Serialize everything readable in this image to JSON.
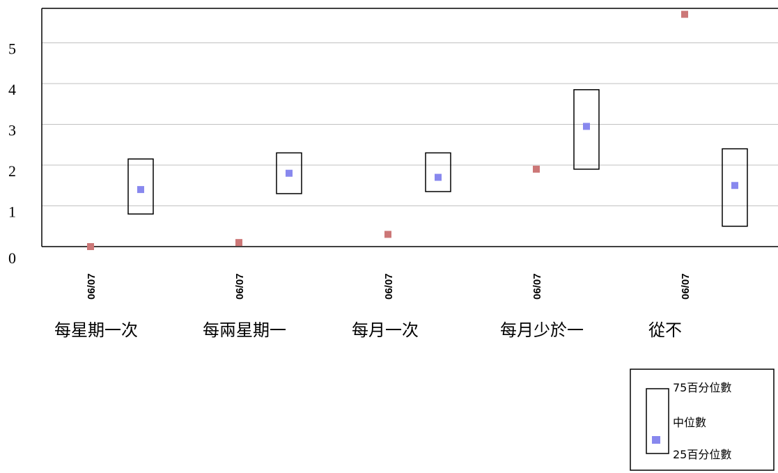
{
  "chart_data": {
    "type": "scatter",
    "ylim": [
      0,
      6
    ],
    "yticks": [
      0,
      1,
      2,
      3,
      4,
      5
    ],
    "grid": true,
    "legend_position": "bottom-right",
    "categories": [
      "每星期一次",
      "每兩星期一",
      "每月一次",
      "每月少於一",
      "從不"
    ],
    "tick_labels": [
      "06/07",
      "06/07",
      "06/07",
      "06/07",
      "06/07"
    ],
    "series": [
      {
        "color": "#cc7777",
        "values": [
          0.0,
          0.1,
          0.3,
          1.9,
          5.7
        ]
      },
      {
        "color": "#8888ee",
        "median": [
          1.4,
          1.8,
          1.7,
          2.95,
          1.5
        ],
        "p25": [
          0.8,
          1.3,
          1.35,
          1.9,
          0.5
        ],
        "p75": [
          2.15,
          2.3,
          2.3,
          3.85,
          2.4
        ]
      }
    ],
    "legend": {
      "p75": "75百分位數",
      "median": "中位數",
      "p25": "25百分位數"
    }
  }
}
